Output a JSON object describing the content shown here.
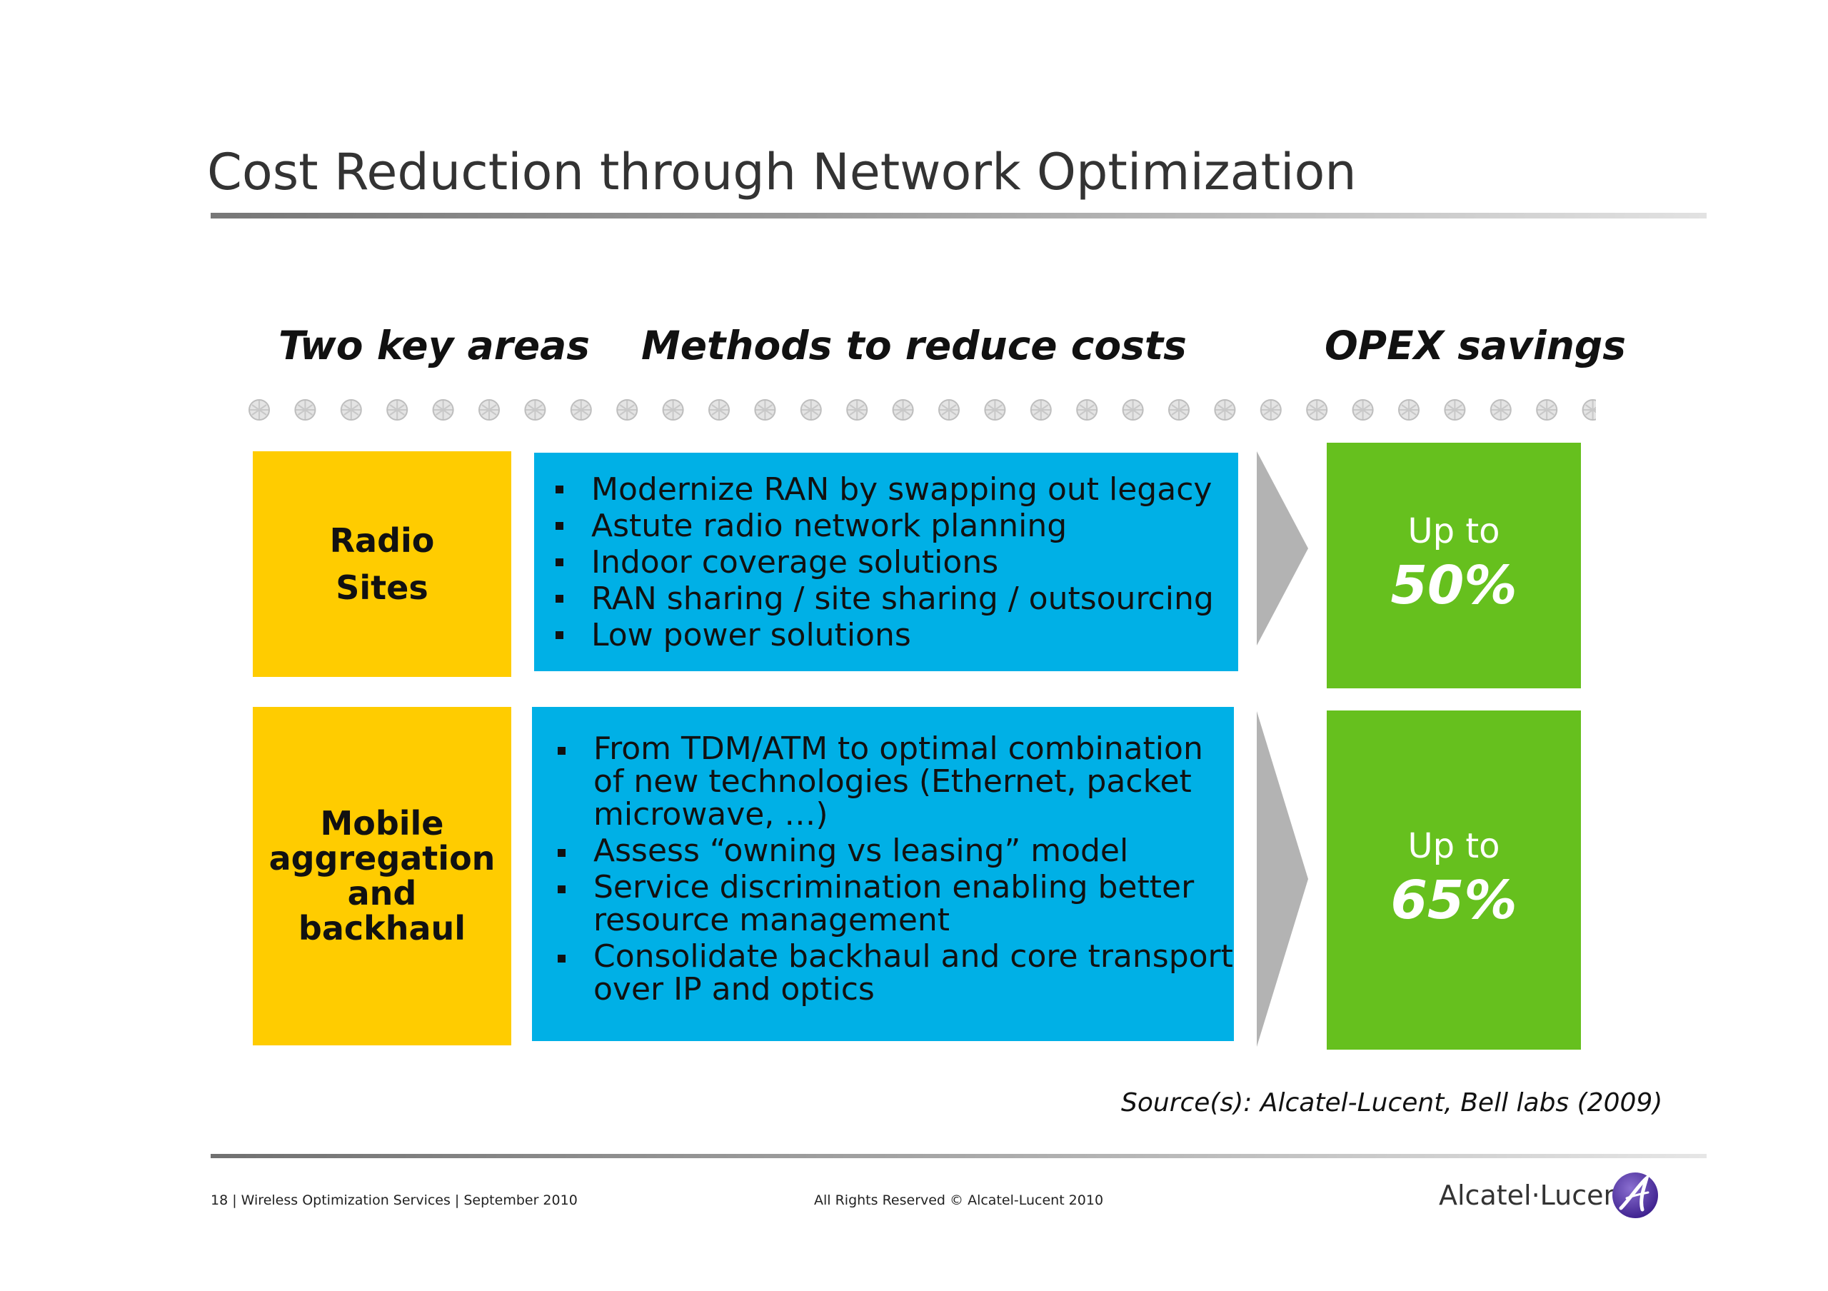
{
  "slide": {
    "title": "Cost Reduction through Network Optimization",
    "columns": {
      "areas": "Two key areas",
      "methods": "Methods to reduce costs",
      "savings": "OPEX savings"
    },
    "rows": [
      {
        "area_lines": [
          "Radio",
          "Sites"
        ],
        "methods": [
          "Modernize RAN by swapping out legacy",
          "Astute radio network planning",
          "Indoor coverage solutions",
          "RAN sharing / site sharing / outsourcing",
          "Low power solutions"
        ],
        "saving_prefix": "Up to",
        "saving_value": "50%"
      },
      {
        "area_lines": [
          "Mobile",
          "aggregation",
          "and",
          "backhaul"
        ],
        "methods": [
          "From TDM/ATM to optimal combination of new technologies (Ethernet, packet microwave, …)",
          "Assess “owning vs leasing” model",
          "Service discrimination enabling better resource management",
          "Consolidate backhaul and core transport over IP and optics"
        ],
        "saving_prefix": "Up to",
        "saving_value": "65%"
      }
    ],
    "source": "Source(s): Alcatel-Lucent, Bell labs (2009)"
  },
  "footer": {
    "left": "18 | Wireless Optimization Services | September 2010",
    "middle": "All Rights Reserved © Alcatel-Lucent 2010",
    "logo_text": "Alcatel·Lucent"
  },
  "colors": {
    "area": "#ffcc00",
    "methods": "#00b0e6",
    "savings": "#66c01e",
    "arrow": "#b3b3b3"
  }
}
